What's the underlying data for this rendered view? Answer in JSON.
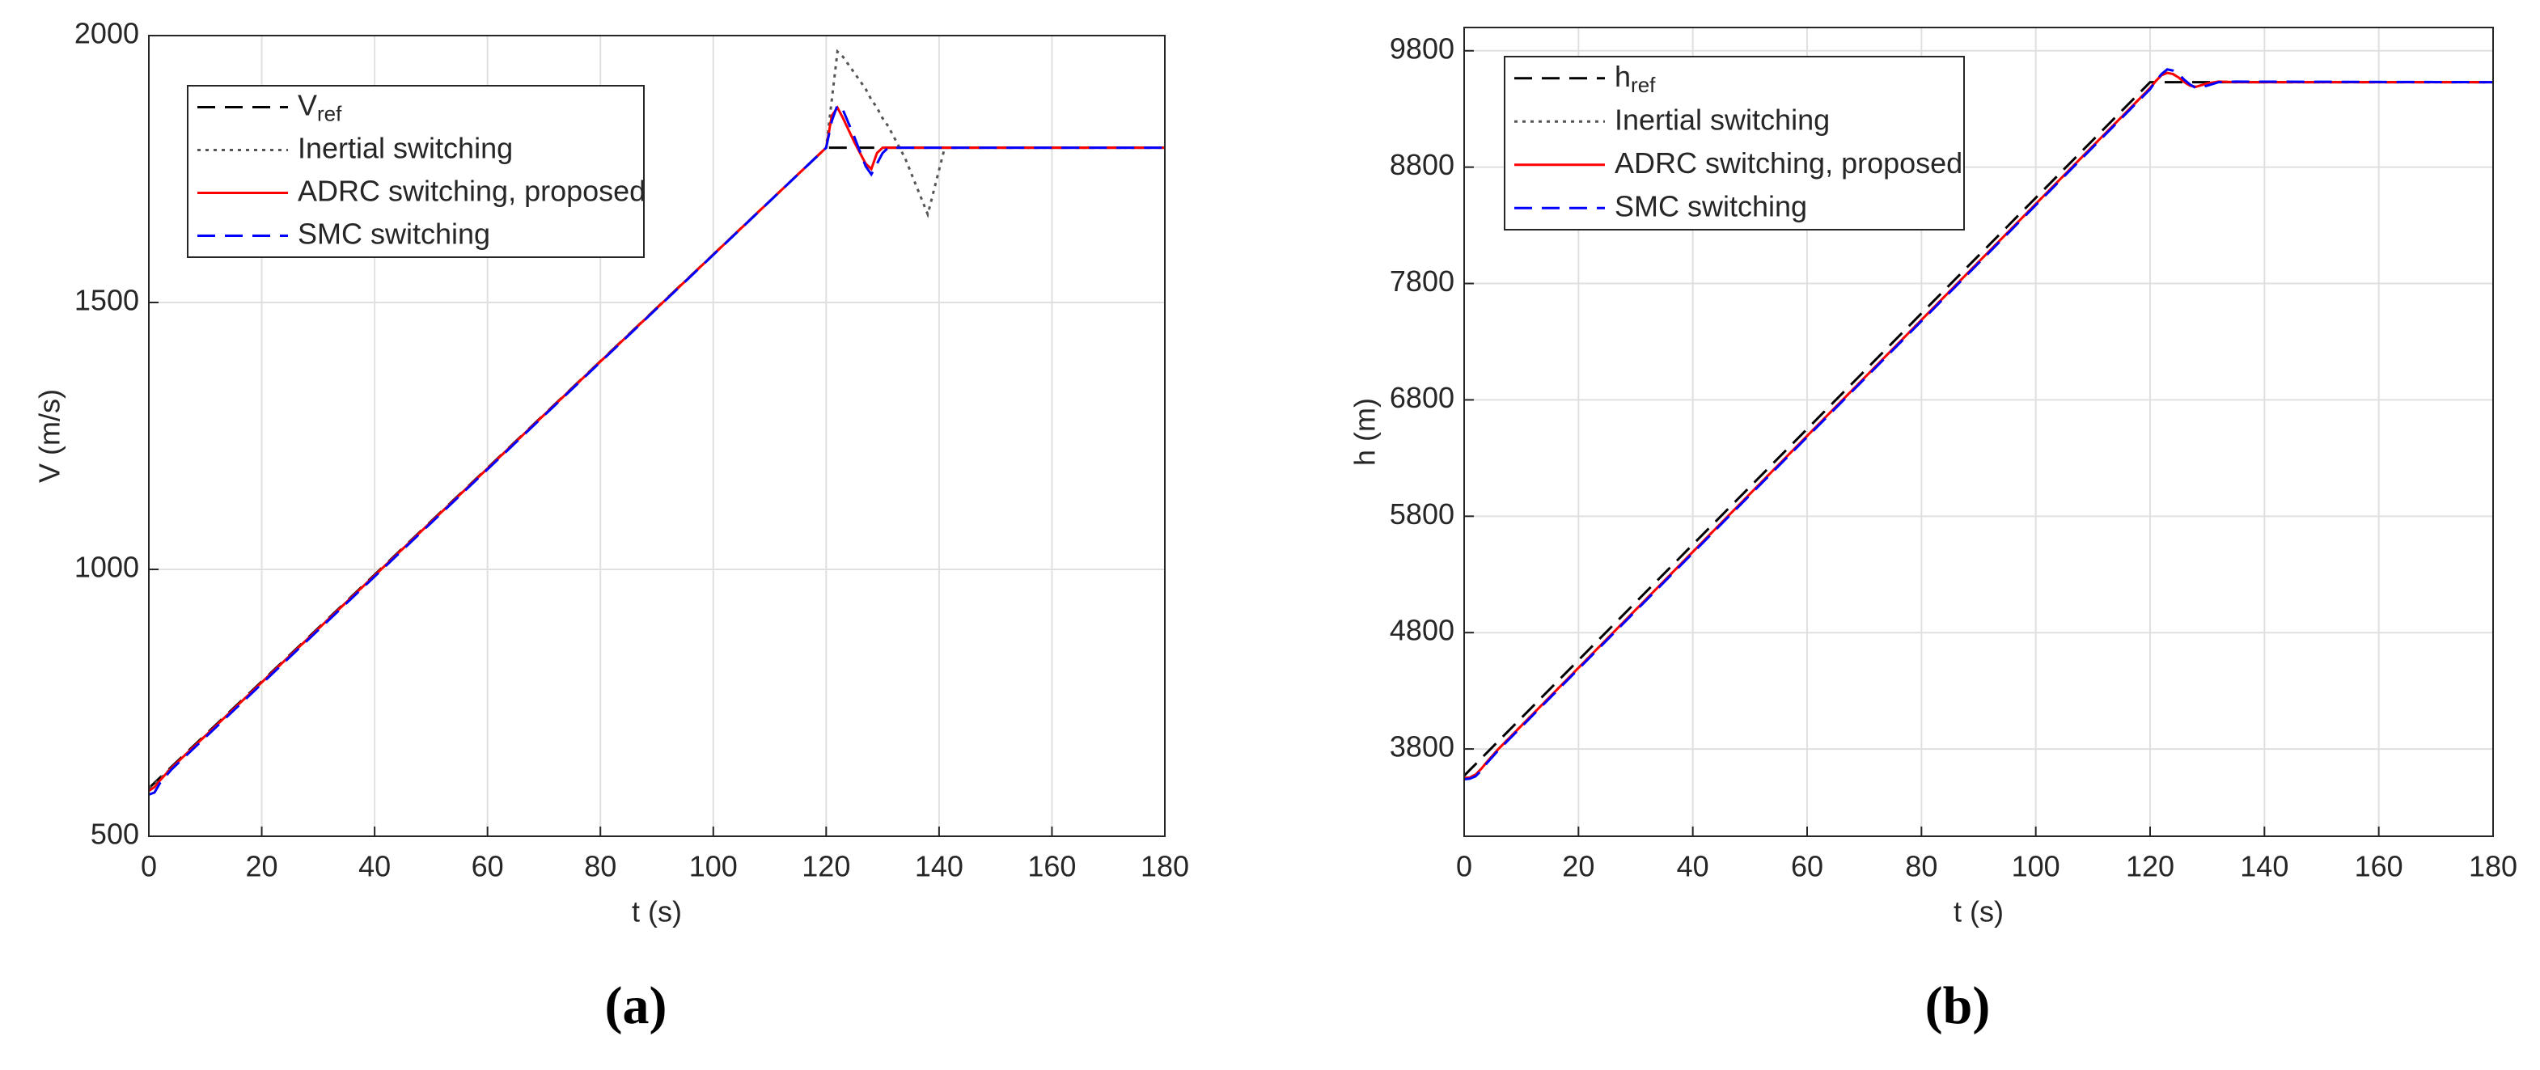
{
  "chart_data": [
    {
      "type": "line",
      "caption": "(a)",
      "xlabel": "t (s)",
      "ylabel": "V (m/s)",
      "x": [
        0,
        1,
        2,
        4,
        120,
        121,
        122,
        123,
        125,
        127,
        128,
        129,
        130,
        131,
        134,
        138,
        141,
        145,
        180
      ],
      "xlim": [
        0,
        180
      ],
      "xticks": [
        0,
        20,
        40,
        60,
        80,
        100,
        120,
        140,
        160,
        180
      ],
      "ylim": [
        500,
        2000
      ],
      "yticks": [
        500,
        1000,
        1500,
        2000
      ],
      "grid": true,
      "legend": "upper left",
      "series": [
        {
          "name": "V",
          "subscript": "ref",
          "color": "#000000",
          "style": "dashed",
          "values": [
            590,
            600,
            610,
            630,
            1790,
            1790,
            1790,
            1790,
            1790,
            1790,
            1790,
            1790,
            1790,
            1790,
            1790,
            1790,
            1790,
            1790,
            1790
          ]
        },
        {
          "name": "Inertial switching",
          "color": "#555555",
          "style": "dotted",
          "values": [
            590,
            598,
            608,
            628,
            1790,
            1880,
            1970,
            1960,
            1930,
            1900,
            1880,
            1865,
            1845,
            1830,
            1770,
            1665,
            1790,
            1790,
            1790
          ]
        },
        {
          "name": "ADRC switching, proposed",
          "color": "#ff0000",
          "style": "solid",
          "values": [
            585,
            592,
            605,
            628,
            1790,
            1850,
            1865,
            1845,
            1800,
            1760,
            1750,
            1780,
            1790,
            1790,
            1790,
            1790,
            1790,
            1790,
            1790
          ]
        },
        {
          "name": "SMC switching",
          "color": "#0000ff",
          "style": "dashed",
          "values": [
            578,
            582,
            600,
            625,
            1790,
            1840,
            1870,
            1860,
            1810,
            1755,
            1740,
            1760,
            1780,
            1790,
            1790,
            1790,
            1790,
            1790,
            1790
          ]
        }
      ]
    },
    {
      "type": "line",
      "caption": "(b)",
      "xlabel": "t (s)",
      "ylabel": "h (m)",
      "x": [
        0,
        1,
        2,
        3,
        4,
        6,
        120,
        121,
        122,
        123,
        124,
        125,
        126,
        127,
        128,
        130,
        132,
        135,
        180
      ],
      "xlim": [
        0,
        180
      ],
      "xticks": [
        0,
        20,
        40,
        60,
        80,
        100,
        120,
        140,
        160,
        180
      ],
      "ylim": [
        3050,
        10000
      ],
      "yticks": [
        3800,
        4800,
        5800,
        6800,
        7800,
        8800,
        9800
      ],
      "grid": true,
      "legend": "upper left",
      "series": [
        {
          "name": "h",
          "subscript": "ref",
          "color": "#000000",
          "style": "dashed",
          "values": [
            3570,
            3620,
            3669,
            3719,
            3769,
            3868,
            9530,
            9530,
            9530,
            9530,
            9530,
            9530,
            9530,
            9530,
            9530,
            9530,
            9530,
            9530,
            9530
          ]
        },
        {
          "name": "Inertial switching",
          "color": "#555555",
          "style": "dotted",
          "values": [
            3550,
            3555,
            3580,
            3630,
            3690,
            3800,
            9480,
            9540,
            9590,
            9610,
            9600,
            9570,
            9530,
            9500,
            9490,
            9520,
            9535,
            9530,
            9530
          ]
        },
        {
          "name": "ADRC switching, proposed",
          "color": "#ff0000",
          "style": "solid",
          "values": [
            3550,
            3555,
            3580,
            3630,
            3690,
            3800,
            9480,
            9540,
            9590,
            9610,
            9600,
            9570,
            9530,
            9500,
            9490,
            9520,
            9535,
            9530,
            9530
          ]
        },
        {
          "name": "SMC switching",
          "color": "#0000ff",
          "style": "dashed",
          "values": [
            3540,
            3545,
            3565,
            3615,
            3680,
            3790,
            9470,
            9540,
            9600,
            9640,
            9630,
            9600,
            9550,
            9510,
            9480,
            9500,
            9530,
            9535,
            9530
          ]
        }
      ]
    }
  ]
}
